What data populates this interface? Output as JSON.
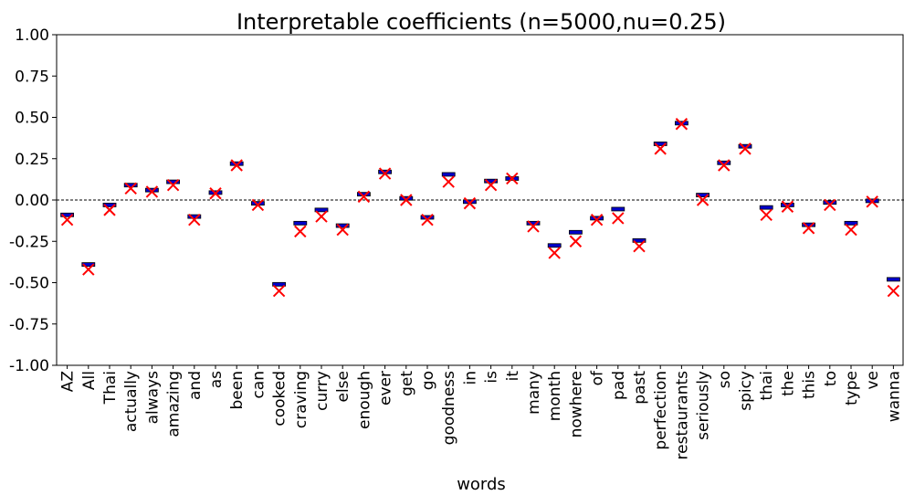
{
  "chart_data": {
    "type": "box-marker",
    "title": "Interpretable coefficients (n=5000,nu=0.25)",
    "x_label": "words",
    "categories": [
      "AZ",
      "All",
      "Thai",
      "actually",
      "always",
      "amazing",
      "and",
      "as",
      "been",
      "can",
      "cooked",
      "craving",
      "curry",
      "else",
      "enough",
      "ever",
      "get",
      "go",
      "goodness",
      "in",
      "is",
      "it",
      "many",
      "month",
      "nowhere",
      "of",
      "pad",
      "past",
      "perfection",
      "restaurants",
      "seriously",
      "so",
      "spicy",
      "thai",
      "the",
      "this",
      "to",
      "type",
      "ve",
      "wanna"
    ],
    "series": [
      {
        "color": "#0000cc",
        "marker": "box",
        "values": [
          -0.09,
          -0.39,
          -0.03,
          0.09,
          0.06,
          0.11,
          -0.1,
          0.045,
          0.22,
          -0.02,
          -0.51,
          -0.14,
          -0.06,
          -0.155,
          0.035,
          0.17,
          0.01,
          -0.105,
          0.155,
          -0.01,
          0.115,
          0.13,
          -0.14,
          -0.275,
          -0.195,
          -0.11,
          -0.055,
          -0.245,
          0.34,
          0.465,
          0.03,
          0.225,
          0.325,
          -0.045,
          -0.03,
          -0.15,
          -0.015,
          -0.14,
          -0.005,
          -0.48
        ]
      },
      {
        "color": "#ff0000",
        "marker": "x",
        "values": [
          -0.12,
          -0.42,
          -0.06,
          0.07,
          0.05,
          0.09,
          -0.12,
          0.04,
          0.21,
          -0.03,
          -0.55,
          -0.19,
          -0.1,
          -0.18,
          0.02,
          0.16,
          0.0,
          -0.12,
          0.11,
          -0.02,
          0.09,
          0.13,
          -0.16,
          -0.32,
          -0.25,
          -0.12,
          -0.11,
          -0.28,
          0.31,
          0.46,
          0.0,
          0.21,
          0.31,
          -0.09,
          -0.04,
          -0.17,
          -0.03,
          -0.18,
          -0.01,
          -0.55
        ]
      }
    ],
    "ylim": [
      -1,
      1
    ],
    "yticks": [
      {
        "value": -1,
        "label": "-1.00"
      },
      {
        "value": -0.75,
        "label": "-0.75"
      },
      {
        "value": -0.5,
        "label": "-0.50"
      },
      {
        "value": -0.25,
        "label": "-0.25"
      },
      {
        "value": 0,
        "label": "0.00"
      },
      {
        "value": 0.25,
        "label": "0.25"
      },
      {
        "value": 0.5,
        "label": "0.50"
      },
      {
        "value": 0.75,
        "label": "0.75"
      },
      {
        "value": 1,
        "label": "1.00"
      }
    ],
    "reference_line": 0
  }
}
